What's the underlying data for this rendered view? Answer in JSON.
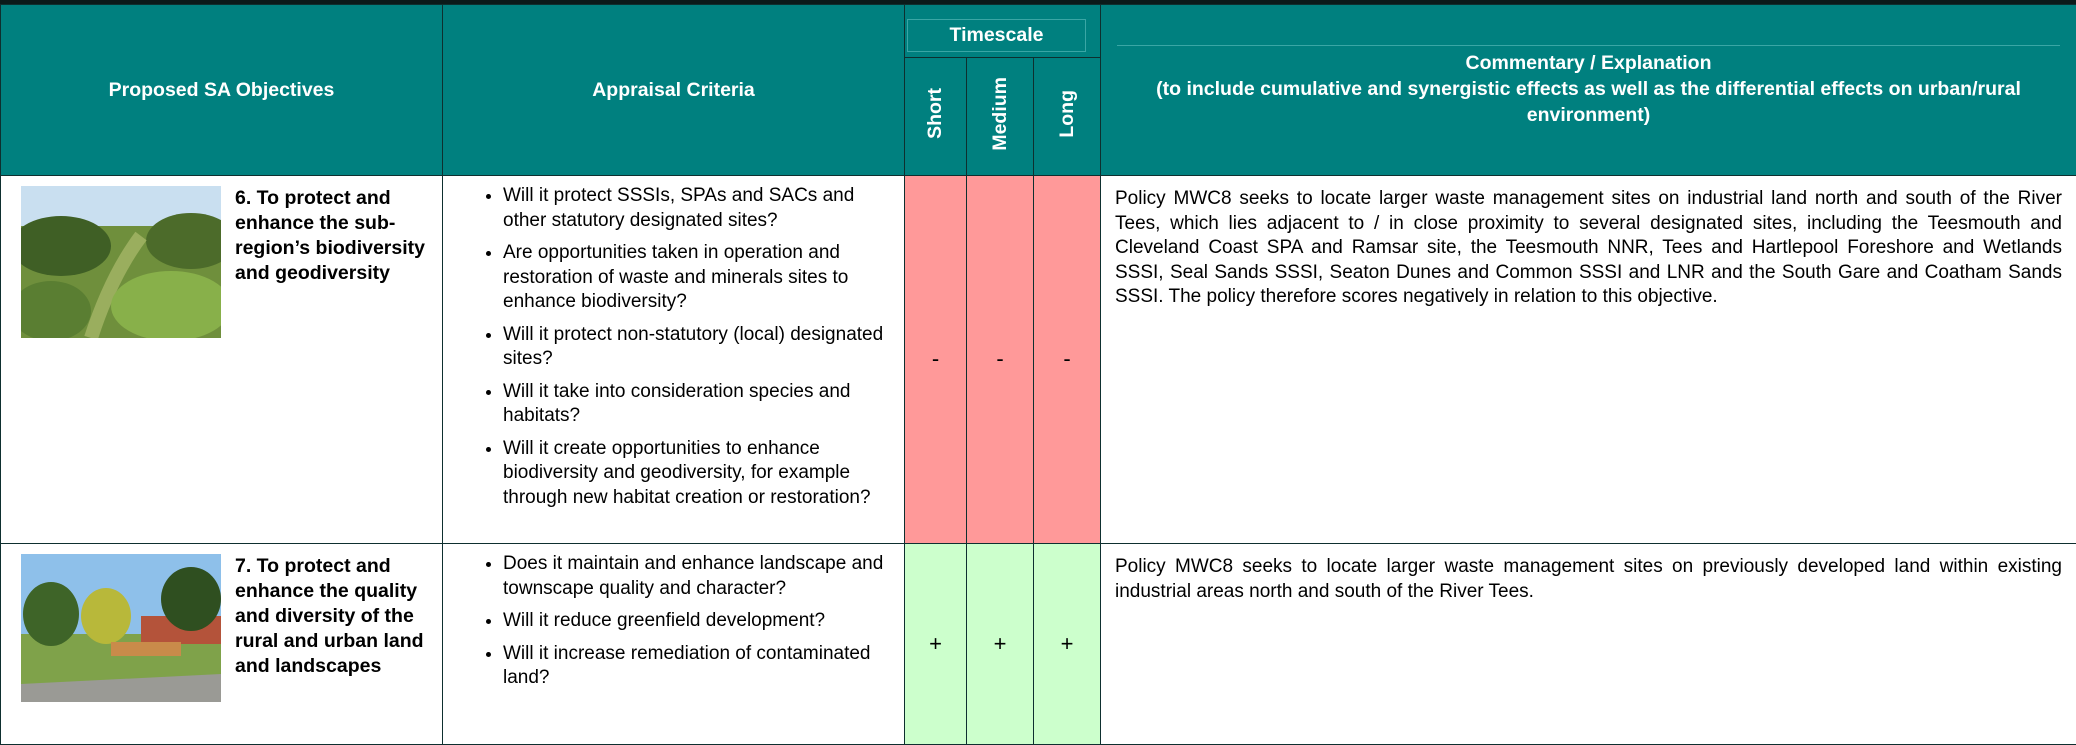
{
  "header": {
    "objectives": "Proposed SA Objectives",
    "criteria": "Appraisal Criteria",
    "timescale": "Timescale",
    "short": "Short",
    "medium": "Medium",
    "long": "Long",
    "commentary_title": "Commentary / Explanation",
    "commentary_subtitle": "(to include cumulative and synergistic effects as well as the differential effects on urban/rural environment)"
  },
  "rows": [
    {
      "objective": "6. To protect and enhance the sub-region’s biodiversity and geodiversity",
      "criteria": [
        "Will it protect SSSIs, SPAs and SACs and other statutory designated sites?",
        "Are opportunities taken in operation and restoration of waste and minerals sites to enhance biodiversity?",
        "Will it protect non-statutory (local) designated sites?",
        "Will it take into consideration species and habitats?",
        "Will it create opportunities to enhance biodiversity and geodiversity, for example through new habitat creation or restoration?"
      ],
      "short": "-",
      "medium": "-",
      "long": "-",
      "commentary": "Policy MWC8 seeks to locate larger waste management sites on industrial land north and south of the River Tees, which lies adjacent to / in close proximity to several designated sites, including the Teesmouth and Cleveland Coast SPA and Ramsar site, the Teesmouth NNR, Tees and Hartlepool Foreshore and Wetlands SSSI, Seal Sands SSSI, Seaton Dunes and Common SSSI and LNR and the South Gare and Coatham Sands SSSI. The policy therefore scores negatively in relation to this objective."
    },
    {
      "objective": "7. To protect and enhance the quality and diversity of the rural and urban land and landscapes",
      "criteria": [
        "Does it maintain and enhance landscape and townscape quality and character?",
        "Will it reduce greenfield development?",
        "Will it increase remediation of contaminated land?"
      ],
      "short": "+",
      "medium": "+",
      "long": "+",
      "commentary": "Policy MWC8 seeks to locate larger waste management sites on previously developed land within existing industrial areas north and south of the River Tees."
    }
  ]
}
